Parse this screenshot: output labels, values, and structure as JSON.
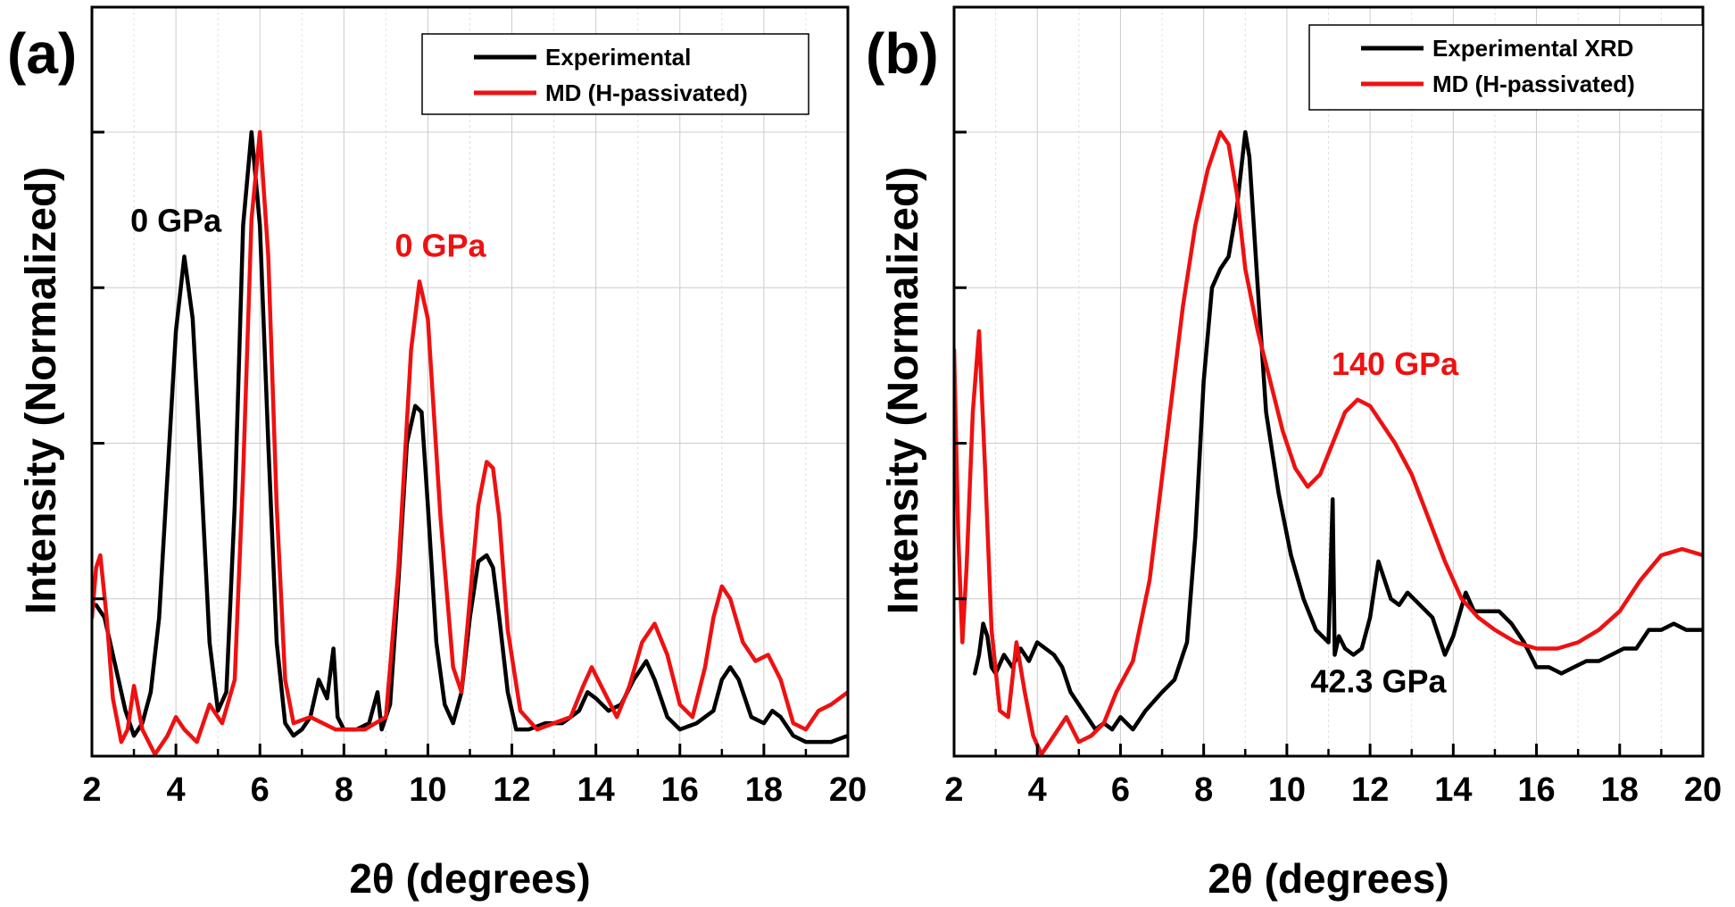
{
  "chart_data": [
    {
      "panel_label": "(a)",
      "type": "line",
      "xlabel": "2θ (degrees)",
      "ylabel": "Intensity (Normalized)",
      "xlim": [
        2,
        20
      ],
      "ylim": [
        0,
        1.0
      ],
      "xticks": [
        "2",
        "4",
        "6",
        "8",
        "10",
        "12",
        "14",
        "16",
        "18",
        "20"
      ],
      "grid": true,
      "legend_position": "top-right",
      "annotations": [
        {
          "text": "0 GPa",
          "color": "#000000",
          "x": 4.0,
          "y": 0.84
        },
        {
          "text": "0 GPa",
          "color": "#ee1111",
          "x": 10.3,
          "y": 0.8
        }
      ],
      "series": [
        {
          "name": "Experimental",
          "color": "#000000",
          "x": [
            2.1,
            2.3,
            2.5,
            2.8,
            3.0,
            3.2,
            3.4,
            3.6,
            3.8,
            4.0,
            4.2,
            4.4,
            4.6,
            4.8,
            5.0,
            5.2,
            5.4,
            5.6,
            5.8,
            6.0,
            6.2,
            6.4,
            6.6,
            6.8,
            7.0,
            7.2,
            7.4,
            7.6,
            7.75,
            7.85,
            8.0,
            8.3,
            8.6,
            8.8,
            8.9,
            9.1,
            9.3,
            9.5,
            9.7,
            9.85,
            10.0,
            10.2,
            10.4,
            10.6,
            10.8,
            11.0,
            11.2,
            11.4,
            11.55,
            11.7,
            11.9,
            12.1,
            12.4,
            12.8,
            13.2,
            13.6,
            13.8,
            14.0,
            14.3,
            14.6,
            14.9,
            15.2,
            15.4,
            15.7,
            16.0,
            16.4,
            16.8,
            17.0,
            17.2,
            17.4,
            17.7,
            18.0,
            18.2,
            18.4,
            18.7,
            19.0,
            19.3,
            19.6,
            20.0
          ],
          "y": [
            0.24,
            0.22,
            0.16,
            0.07,
            0.03,
            0.05,
            0.1,
            0.22,
            0.45,
            0.68,
            0.8,
            0.7,
            0.45,
            0.18,
            0.07,
            0.1,
            0.4,
            0.85,
            1.0,
            0.85,
            0.5,
            0.18,
            0.05,
            0.03,
            0.04,
            0.06,
            0.12,
            0.09,
            0.17,
            0.06,
            0.04,
            0.04,
            0.05,
            0.1,
            0.04,
            0.08,
            0.28,
            0.5,
            0.56,
            0.55,
            0.4,
            0.18,
            0.08,
            0.05,
            0.1,
            0.22,
            0.31,
            0.32,
            0.3,
            0.22,
            0.1,
            0.04,
            0.04,
            0.05,
            0.05,
            0.07,
            0.1,
            0.09,
            0.07,
            0.08,
            0.12,
            0.15,
            0.12,
            0.06,
            0.04,
            0.05,
            0.07,
            0.12,
            0.14,
            0.12,
            0.06,
            0.05,
            0.07,
            0.06,
            0.03,
            0.02,
            0.02,
            0.02,
            0.03
          ]
        },
        {
          "name": "MD (H-passivated)",
          "color": "#ee1111",
          "x": [
            2.0,
            2.1,
            2.2,
            2.35,
            2.5,
            2.7,
            2.85,
            3.0,
            3.2,
            3.5,
            3.8,
            4.0,
            4.2,
            4.5,
            4.8,
            5.1,
            5.4,
            5.6,
            5.8,
            6.0,
            6.2,
            6.4,
            6.6,
            6.8,
            7.2,
            7.8,
            8.5,
            9.0,
            9.3,
            9.6,
            9.8,
            10.0,
            10.3,
            10.6,
            10.8,
            11.0,
            11.2,
            11.4,
            11.55,
            11.7,
            11.9,
            12.2,
            12.6,
            13.0,
            13.4,
            13.7,
            13.9,
            14.2,
            14.5,
            14.8,
            15.1,
            15.4,
            15.7,
            16.0,
            16.3,
            16.6,
            16.8,
            17.0,
            17.2,
            17.5,
            17.8,
            18.1,
            18.4,
            18.7,
            19.0,
            19.3,
            19.6,
            20.0
          ],
          "y": [
            0.22,
            0.3,
            0.32,
            0.22,
            0.09,
            0.02,
            0.04,
            0.11,
            0.04,
            0.0,
            0.03,
            0.06,
            0.04,
            0.02,
            0.08,
            0.05,
            0.12,
            0.45,
            0.86,
            1.0,
            0.8,
            0.4,
            0.12,
            0.05,
            0.06,
            0.04,
            0.04,
            0.06,
            0.3,
            0.65,
            0.76,
            0.7,
            0.38,
            0.14,
            0.1,
            0.25,
            0.4,
            0.47,
            0.46,
            0.38,
            0.2,
            0.07,
            0.04,
            0.05,
            0.06,
            0.11,
            0.14,
            0.1,
            0.06,
            0.11,
            0.18,
            0.21,
            0.16,
            0.08,
            0.06,
            0.14,
            0.22,
            0.27,
            0.25,
            0.18,
            0.15,
            0.16,
            0.12,
            0.05,
            0.04,
            0.07,
            0.08,
            0.1
          ]
        }
      ]
    },
    {
      "panel_label": "(b)",
      "type": "line",
      "xlabel": "2θ (degrees)",
      "ylabel": "Intensity (Normalized)",
      "xlim": [
        2,
        20
      ],
      "ylim": [
        0,
        1.0
      ],
      "xticks": [
        "2",
        "4",
        "6",
        "8",
        "10",
        "12",
        "14",
        "16",
        "18",
        "20"
      ],
      "grid": true,
      "legend_position": "top-right",
      "annotations": [
        {
          "text": "140 GPa",
          "color": "#ee1111",
          "x": 12.6,
          "y": 0.61
        },
        {
          "text": "42.3 GPa",
          "color": "#000000",
          "x": 12.2,
          "y": 0.1
        }
      ],
      "series": [
        {
          "name": "Experimental XRD",
          "color": "#000000",
          "x": [
            2.5,
            2.6,
            2.7,
            2.8,
            2.9,
            3.0,
            3.2,
            3.4,
            3.6,
            3.8,
            4.0,
            4.2,
            4.4,
            4.6,
            4.8,
            5.0,
            5.2,
            5.4,
            5.6,
            5.8,
            6.0,
            6.3,
            6.6,
            7.0,
            7.3,
            7.6,
            7.8,
            8.0,
            8.2,
            8.4,
            8.6,
            8.8,
            9.0,
            9.1,
            9.3,
            9.5,
            9.8,
            10.1,
            10.4,
            10.7,
            11.0,
            11.1,
            11.15,
            11.25,
            11.4,
            11.6,
            11.8,
            12.0,
            12.2,
            12.3,
            12.5,
            12.7,
            12.9,
            13.2,
            13.5,
            13.8,
            14.0,
            14.3,
            14.5,
            14.8,
            15.1,
            15.4,
            15.7,
            16.0,
            16.3,
            16.6,
            16.9,
            17.2,
            17.5,
            17.8,
            18.1,
            18.4,
            18.7,
            19.0,
            19.3,
            19.6,
            20.0
          ],
          "y": [
            0.13,
            0.16,
            0.21,
            0.19,
            0.14,
            0.13,
            0.16,
            0.14,
            0.17,
            0.15,
            0.18,
            0.17,
            0.16,
            0.14,
            0.1,
            0.08,
            0.06,
            0.04,
            0.05,
            0.04,
            0.06,
            0.04,
            0.07,
            0.1,
            0.12,
            0.18,
            0.35,
            0.6,
            0.75,
            0.78,
            0.8,
            0.88,
            1.0,
            0.96,
            0.75,
            0.55,
            0.42,
            0.32,
            0.25,
            0.2,
            0.18,
            0.41,
            0.16,
            0.19,
            0.17,
            0.16,
            0.17,
            0.22,
            0.31,
            0.29,
            0.25,
            0.24,
            0.26,
            0.24,
            0.22,
            0.16,
            0.19,
            0.26,
            0.23,
            0.23,
            0.23,
            0.21,
            0.18,
            0.14,
            0.14,
            0.13,
            0.14,
            0.15,
            0.15,
            0.16,
            0.17,
            0.17,
            0.2,
            0.2,
            0.21,
            0.2,
            0.2
          ]
        },
        {
          "name": "MD (H-passivated)",
          "color": "#ee1111",
          "x": [
            2.0,
            2.1,
            2.2,
            2.3,
            2.45,
            2.6,
            2.75,
            2.9,
            3.1,
            3.3,
            3.5,
            3.7,
            3.9,
            4.1,
            4.4,
            4.7,
            5.0,
            5.3,
            5.6,
            5.9,
            6.3,
            6.7,
            7.1,
            7.5,
            7.8,
            8.1,
            8.4,
            8.6,
            8.8,
            9.0,
            9.3,
            9.6,
            9.9,
            10.2,
            10.5,
            10.8,
            11.1,
            11.4,
            11.7,
            12.0,
            12.3,
            12.6,
            13.0,
            13.4,
            13.8,
            14.2,
            14.6,
            15.0,
            15.5,
            16.0,
            16.5,
            17.0,
            17.5,
            18.0,
            18.5,
            19.0,
            19.5,
            20.0
          ],
          "y": [
            0.65,
            0.35,
            0.18,
            0.3,
            0.55,
            0.68,
            0.45,
            0.2,
            0.07,
            0.06,
            0.18,
            0.1,
            0.03,
            0.0,
            0.03,
            0.06,
            0.02,
            0.03,
            0.05,
            0.1,
            0.15,
            0.28,
            0.5,
            0.72,
            0.85,
            0.94,
            1.0,
            0.98,
            0.9,
            0.78,
            0.68,
            0.6,
            0.52,
            0.46,
            0.43,
            0.45,
            0.5,
            0.55,
            0.57,
            0.56,
            0.53,
            0.5,
            0.45,
            0.38,
            0.31,
            0.25,
            0.22,
            0.2,
            0.18,
            0.17,
            0.17,
            0.18,
            0.2,
            0.23,
            0.28,
            0.32,
            0.33,
            0.32
          ]
        }
      ]
    }
  ]
}
